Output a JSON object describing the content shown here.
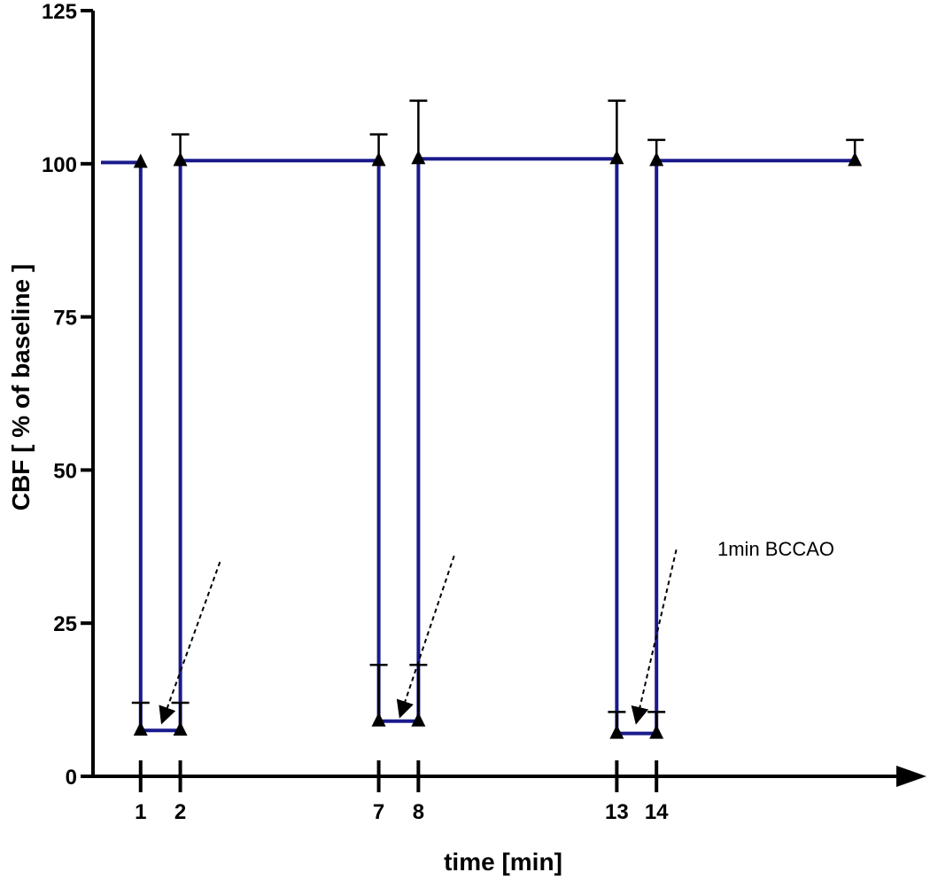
{
  "chart_data": {
    "type": "line",
    "title": "",
    "xlabel": "time [min]",
    "ylabel": "CBF  [ % of baseline ]",
    "ylim": [
      0,
      125
    ],
    "yticks": [
      0,
      25,
      50,
      75,
      100,
      125
    ],
    "xlim": [
      -0.2,
      20
    ],
    "xticks": [
      1,
      2,
      7,
      8,
      13,
      14
    ],
    "xtick_labels": [
      "1",
      "2",
      "7",
      "8",
      "13",
      "14"
    ],
    "series": [
      {
        "name": "CBF",
        "color": "#1a1a8c",
        "step": true,
        "points": [
          {
            "x": 0,
            "y": 100.2,
            "err": 0
          },
          {
            "x": 1,
            "y": 100.2,
            "err": 0
          },
          {
            "x": 1,
            "y": 7.5,
            "err": 4.5
          },
          {
            "x": 2,
            "y": 7.5,
            "err": 4.5
          },
          {
            "x": 2,
            "y": 100.5,
            "err": 4.3
          },
          {
            "x": 7,
            "y": 100.5,
            "err": 4.3
          },
          {
            "x": 7,
            "y": 9.0,
            "err": 9.2
          },
          {
            "x": 8,
            "y": 9.0,
            "err": 9.2
          },
          {
            "x": 8,
            "y": 100.8,
            "err": 9.5
          },
          {
            "x": 13,
            "y": 100.8,
            "err": 9.5
          },
          {
            "x": 13,
            "y": 7.0,
            "err": 3.5
          },
          {
            "x": 14,
            "y": 7.0,
            "err": 3.5
          },
          {
            "x": 14,
            "y": 100.5,
            "err": 3.4
          },
          {
            "x": 19,
            "y": 100.5,
            "err": 3.4
          }
        ]
      }
    ],
    "annotations": [
      {
        "text": "1min BCCAO",
        "arrow_from": {
          "x": 3.0,
          "y": 35
        },
        "arrow_to": {
          "x": 1.55,
          "y": 9
        }
      },
      {
        "text": "",
        "arrow_from": {
          "x": 8.9,
          "y": 36
        },
        "arrow_to": {
          "x": 7.55,
          "y": 10
        }
      },
      {
        "text": "",
        "arrow_from": {
          "x": 14.5,
          "y": 37
        },
        "arrow_to": {
          "x": 13.5,
          "y": 9
        }
      }
    ],
    "annotation_label": "1min BCCAO"
  },
  "colors": {
    "series": "#1a1a8c",
    "axis": "#000000",
    "error": "#000000"
  }
}
